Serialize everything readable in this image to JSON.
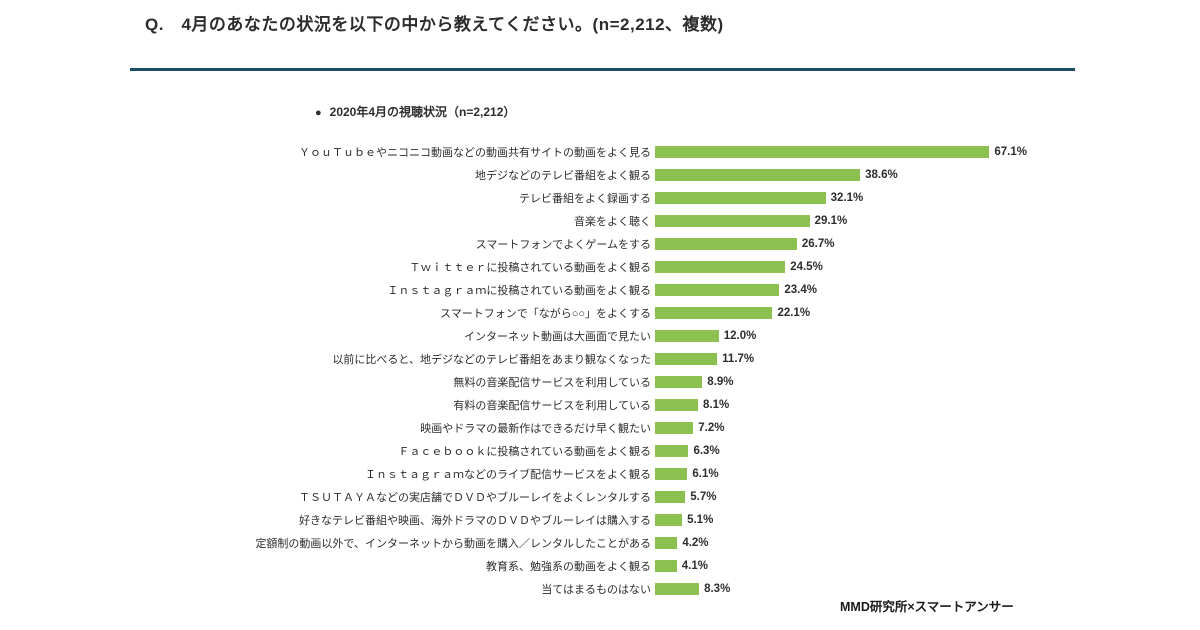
{
  "page": {
    "title": "Q.　4月のあなたの状況を以下の中から教えてください。(n=2,212、複数)",
    "footer": "MMD研究所×スマートアンサー"
  },
  "legend": {
    "bullet": "●",
    "label": "2020年4月の視聴状況（n=2,212）"
  },
  "colors": {
    "bar": "#8cc152",
    "rule": "#1c4c63",
    "text": "#2d2d2d"
  },
  "chart_data": {
    "type": "bar",
    "orientation": "horizontal",
    "title": "2020年4月の視聴状況（n=2,212）",
    "grid": false,
    "xlim": [
      0,
      70
    ],
    "bar_color": "#8cc152",
    "value_suffix": "%",
    "categories": [
      "ＹｏｕＴｕｂｅやニコニコ動画などの動画共有サイトの動画をよく見る",
      "地デジなどのテレビ番組をよく観る",
      "テレビ番組をよく録画する",
      "音楽をよく聴く",
      "スマートフォンでよくゲームをする",
      "Ｔｗｉｔｔｅｒに投稿されている動画をよく観る",
      "Ｉｎｓｔａｇｒａｍに投稿されている動画をよく観る",
      "スマートフォンで「ながら○○」をよくする",
      "インターネット動画は大画面で見たい",
      "以前に比べると、地デジなどのテレビ番組をあまり観なくなった",
      "無料の音楽配信サービスを利用している",
      "有料の音楽配信サービスを利用している",
      "映画やドラマの最新作はできるだけ早く観たい",
      "Ｆａｃｅｂｏｏｋに投稿されている動画をよく観る",
      "Ｉｎｓｔａｇｒａｍなどのライブ配信サービスをよく観る",
      "ＴＳＵＴＡＹＡなどの実店舗でＤＶＤやブルーレイをよくレンタルする",
      "好きなテレビ番組や映画、海外ドラマのＤＶＤやブルーレイは購入する",
      "定額制の動画以外で、インターネットから動画を購入／レンタルしたことがある",
      "教育系、勉強系の動画をよく観る",
      "当てはまるものはない"
    ],
    "values": [
      67.1,
      38.6,
      32.1,
      29.1,
      26.7,
      24.5,
      23.4,
      22.1,
      12.0,
      11.7,
      8.9,
      8.1,
      7.2,
      6.3,
      6.1,
      5.7,
      5.1,
      4.2,
      4.1,
      8.3
    ],
    "value_labels": [
      "67.1%",
      "38.6%",
      "32.1%",
      "29.1%",
      "26.7%",
      "24.5%",
      "23.4%",
      "22.1%",
      "12.0%",
      "11.7%",
      "8.9%",
      "8.1%",
      "7.2%",
      "6.3%",
      "6.1%",
      "5.7%",
      "5.1%",
      "4.2%",
      "4.1%",
      "8.3%"
    ]
  }
}
